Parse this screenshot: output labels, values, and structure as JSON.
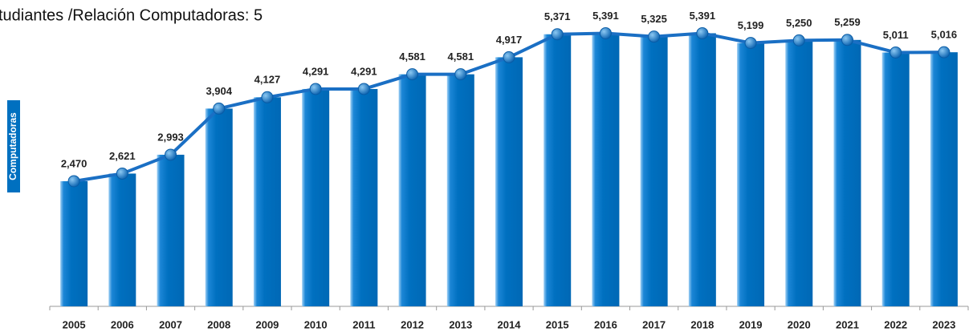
{
  "chart_data": {
    "type": "bar-line",
    "title": "tudiantes /Relación Computadoras: 5",
    "y_label": "Computadoras",
    "categories": [
      "2005",
      "2006",
      "2007",
      "2008",
      "2009",
      "2010",
      "2011",
      "2012",
      "2013",
      "2014",
      "2015",
      "2016",
      "2017",
      "2018",
      "2019",
      "2020",
      "2021",
      "2022",
      "2023"
    ],
    "values": [
      2470,
      2621,
      2993,
      3904,
      4127,
      4291,
      4291,
      4581,
      4581,
      4917,
      5371,
      5391,
      5325,
      5391,
      5199,
      5250,
      5259,
      5011,
      5016
    ],
    "value_labels": [
      "2,470",
      "2,621",
      "2,993",
      "3,904",
      "4,127",
      "4,291",
      "4,291",
      "4,581",
      "4,581",
      "4,917",
      "5,371",
      "5,391",
      "5,325",
      "5,391",
      "5,199",
      "5,250",
      "5,259",
      "5,011",
      "5,016"
    ],
    "color": "#0070c0",
    "line_color": "#1a6fc4",
    "ylim": [
      0,
      6000
    ]
  }
}
